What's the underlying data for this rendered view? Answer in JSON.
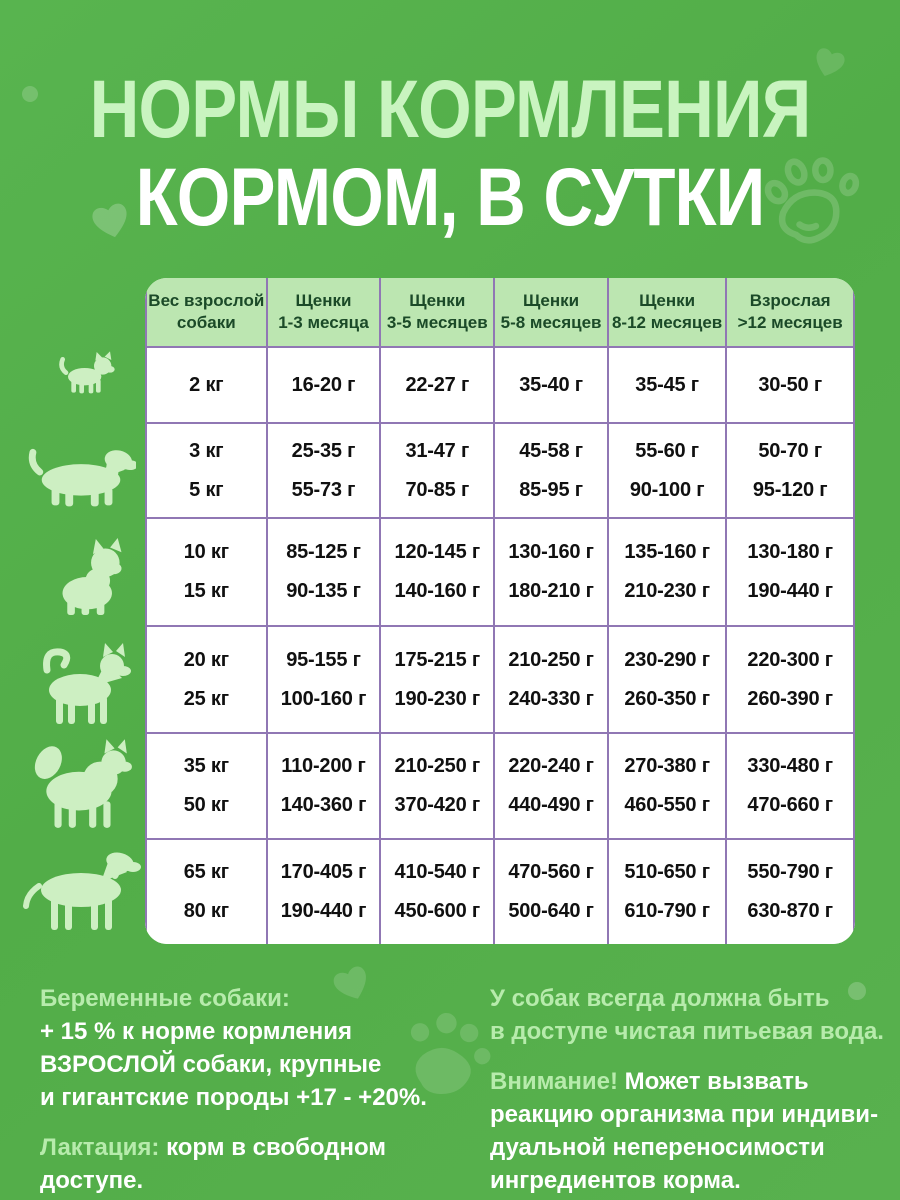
{
  "title": {
    "line1": "НОРМЫ КОРМЛЕНИЯ",
    "line2": "КОРМОМ, В СУТКИ"
  },
  "table": {
    "headers": [
      {
        "line1": "Вес взрослой",
        "line2": "собаки"
      },
      {
        "line1": "Щенки",
        "line2": "1-3 месяца"
      },
      {
        "line1": "Щенки",
        "line2": "3-5 месяцев"
      },
      {
        "line1": "Щенки",
        "line2": "5-8 месяцев"
      },
      {
        "line1": "Щенки",
        "line2": "8-12 месяцев"
      },
      {
        "line1": "Взрослая",
        "line2": ">12 месяцев"
      }
    ],
    "rows": [
      {
        "weights": [
          "2 кг"
        ],
        "values": [
          [
            "16-20 г"
          ],
          [
            "22-27 г"
          ],
          [
            "35-40 г"
          ],
          [
            "35-45 г"
          ],
          [
            "30-50 г"
          ]
        ]
      },
      {
        "weights": [
          "3 кг",
          "5 кг"
        ],
        "values": [
          [
            "25-35 г",
            "55-73 г"
          ],
          [
            "31-47 г",
            "70-85 г"
          ],
          [
            "45-58 г",
            "85-95 г"
          ],
          [
            "55-60 г",
            "90-100 г"
          ],
          [
            "50-70 г",
            "95-120 г"
          ]
        ]
      },
      {
        "weights": [
          "10 кг",
          "15 кг"
        ],
        "values": [
          [
            "85-125 г",
            "90-135 г"
          ],
          [
            "120-145 г",
            "140-160 г"
          ],
          [
            "130-160 г",
            "180-210 г"
          ],
          [
            "135-160 г",
            "210-230 г"
          ],
          [
            "130-180 г",
            "190-440 г"
          ]
        ]
      },
      {
        "weights": [
          "20 кг",
          "25 кг"
        ],
        "values": [
          [
            "95-155 г",
            "100-160 г"
          ],
          [
            "175-215 г",
            "190-230 г"
          ],
          [
            "210-250 г",
            "240-330 г"
          ],
          [
            "230-290 г",
            "260-350 г"
          ],
          [
            "220-300 г",
            "260-390 г"
          ]
        ]
      },
      {
        "weights": [
          "35 кг",
          "50 кг"
        ],
        "values": [
          [
            "110-200 г",
            "140-360 г"
          ],
          [
            "210-250 г",
            "370-420 г"
          ],
          [
            "220-240 г",
            "440-490 г"
          ],
          [
            "270-380 г",
            "460-550 г"
          ],
          [
            "330-480 г",
            "470-660 г"
          ]
        ]
      },
      {
        "weights": [
          "65 кг",
          "80 кг"
        ],
        "values": [
          [
            "170-405 г",
            "190-440 г"
          ],
          [
            "410-540 г",
            "450-600 г"
          ],
          [
            "470-560 г",
            "500-640 г"
          ],
          [
            "510-650 г",
            "610-790 г"
          ],
          [
            "550-790 г",
            "630-870 г"
          ]
        ]
      }
    ]
  },
  "notes": {
    "pregnant": {
      "label": "Беременные собаки:",
      "lines": [
        "+ 15 % к норме кормления",
        "ВЗРОСЛОЙ собаки, крупные",
        "и гигантские породы +17 - +20%."
      ]
    },
    "lactation": {
      "label": "Лактация:",
      "text": " корм в свободном доступе."
    },
    "water": {
      "lines": [
        "У собак всегда должна быть",
        "в доступе чистая питьевая вода."
      ]
    },
    "warning": {
      "label": "Внимание!",
      "first": " Может вызвать",
      "lines": [
        "реакцию организма при индиви-",
        "дуальной непереносимости",
        "ингредиентов корма."
      ]
    }
  },
  "icons": {
    "dogs": [
      "toy-dog-icon",
      "dachshund-icon",
      "bulldog-icon",
      "medium-dog-icon",
      "spitz-dog-icon",
      "large-dog-icon"
    ],
    "decorations": [
      "heart-icon",
      "paw-outline-icon",
      "paw-filled-icon",
      "dot-icon"
    ]
  },
  "colors": {
    "background_green": "#52ad48",
    "title_light_green": "#c9f4c0",
    "note_light_green": "#b7ebac",
    "header_green": "#bce6b1",
    "header_text_green": "#1b4a28",
    "grid_purple": "#9077b4",
    "cell_text": "#101010",
    "white": "#ffffff",
    "dog_silhouette": "#cdefc2"
  },
  "chart_data": {
    "type": "table",
    "title": "НОРМЫ КОРМЛЕНИЯ КОРМОМ, В СУТКИ",
    "columns": [
      "Вес взрослой собаки",
      "Щенки 1-3 месяца",
      "Щенки 3-5 месяцев",
      "Щенки 5-8 месяцев",
      "Щенки 8-12 месяцев",
      "Взрослая >12 месяцев"
    ],
    "rows": [
      [
        "2 кг",
        "16-20 г",
        "22-27 г",
        "35-40 г",
        "35-45 г",
        "30-50 г"
      ],
      [
        "3 кг / 5 кг",
        "25-35 г / 55-73 г",
        "31-47 г / 70-85 г",
        "45-58 г / 85-95 г",
        "55-60 г / 90-100 г",
        "50-70 г / 95-120 г"
      ],
      [
        "10 кг / 15 кг",
        "85-125 г / 90-135 г",
        "120-145 г / 140-160 г",
        "130-160 г / 180-210 г",
        "135-160 г / 210-230 г",
        "130-180 г / 190-440 г"
      ],
      [
        "20 кг / 25 кг",
        "95-155 г / 100-160 г",
        "175-215 г / 190-230 г",
        "210-250 г / 240-330 г",
        "230-290 г / 260-350 г",
        "220-300 г / 260-390 г"
      ],
      [
        "35 кг / 50 кг",
        "110-200 г / 140-360 г",
        "210-250 г / 370-420 г",
        "220-240 г / 440-490 г",
        "270-380 г / 460-550 г",
        "330-480 г / 470-660 г"
      ],
      [
        "65 кг / 80 кг",
        "170-405 г / 190-440 г",
        "410-540 г / 450-600 г",
        "470-560 г / 500-640 г",
        "510-650 г / 610-790 г",
        "550-790 г / 630-870 г"
      ]
    ]
  }
}
